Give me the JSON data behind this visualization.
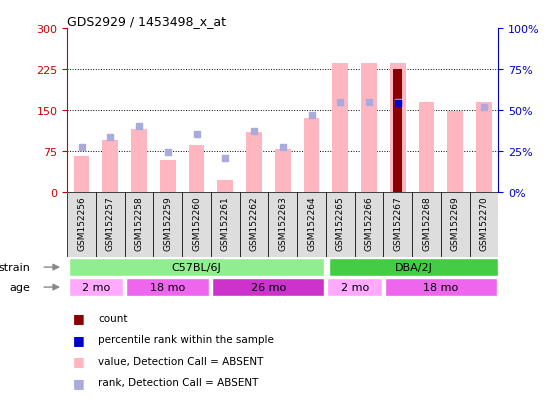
{
  "title": "GDS2929 / 1453498_x_at",
  "samples": [
    "GSM152256",
    "GSM152257",
    "GSM152258",
    "GSM152259",
    "GSM152260",
    "GSM152261",
    "GSM152262",
    "GSM152263",
    "GSM152264",
    "GSM152265",
    "GSM152266",
    "GSM152267",
    "GSM152268",
    "GSM152269",
    "GSM152270"
  ],
  "count_values": [
    null,
    null,
    null,
    null,
    null,
    null,
    null,
    null,
    null,
    null,
    null,
    225,
    null,
    null,
    null
  ],
  "absent_values": [
    65,
    95,
    115,
    58,
    85,
    22,
    110,
    78,
    135,
    235,
    235,
    235,
    165,
    148,
    165
  ],
  "absent_ranks": [
    82,
    100,
    120,
    72,
    105,
    62,
    112,
    82,
    140,
    165,
    165,
    165,
    null,
    null,
    155
  ],
  "present_ranks": [
    null,
    null,
    null,
    null,
    null,
    null,
    null,
    null,
    null,
    null,
    null,
    162,
    null,
    null,
    null
  ],
  "left_yticks": [
    0,
    75,
    150,
    225,
    300
  ],
  "right_yticks": [
    0,
    25,
    50,
    75,
    100
  ],
  "bar_color_absent": "#FFB6C1",
  "bar_color_count": "#8B0000",
  "dot_color_absent_rank": "#AAAADD",
  "dot_color_present_rank": "#0000CC",
  "bg_color": "#FFFFFF",
  "left_axis_color": "#CC0000",
  "right_axis_color": "#0000CC",
  "strain_green_light": "#90EE90",
  "strain_green_dark": "#44CC44",
  "age_color_2mo": "#FFAAFF",
  "age_color_18mo": "#EE66EE",
  "age_color_26mo": "#CC33CC",
  "label_color": "#888888"
}
